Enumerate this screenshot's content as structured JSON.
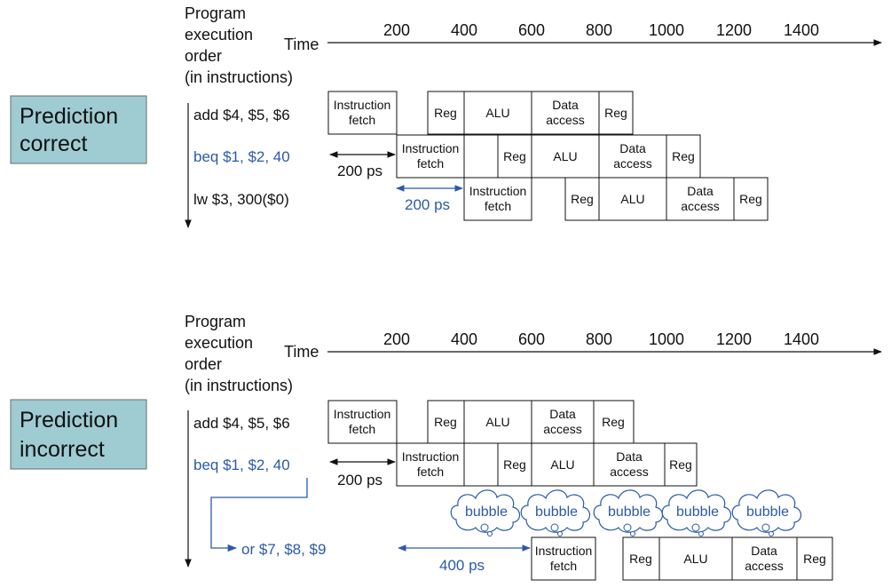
{
  "colors": {
    "blue": "#2a5aa8",
    "black": "#111111",
    "prediction_fill": "#9fccd3"
  },
  "common": {
    "order_label": [
      "Program",
      "execution",
      "order",
      "(in instructions)"
    ],
    "time_label": "Time",
    "ticks": [
      "200",
      "400",
      "600",
      "800",
      "1000",
      "1200",
      "1400"
    ],
    "stages": {
      "if": [
        "Instruction",
        "fetch"
      ],
      "reg": "Reg",
      "alu": "ALU",
      "mem": [
        "Data",
        "access"
      ]
    }
  },
  "panels": [
    {
      "prediction": [
        "Prediction",
        "correct"
      ],
      "instructions": [
        {
          "text": "add $4, $5, $6",
          "color": "black"
        },
        {
          "text": "beq $1, $2, 40",
          "color": "blue"
        },
        {
          "text": "lw  $3, 300($0)",
          "color": "black"
        }
      ],
      "dims": [
        {
          "text": "200 ps",
          "color": "black"
        },
        {
          "text": "200 ps",
          "color": "blue"
        }
      ]
    },
    {
      "prediction": [
        "Prediction",
        "incorrect"
      ],
      "instructions": [
        {
          "text": "add $4, $5, $6",
          "color": "black"
        },
        {
          "text": "beq $1, $2, 40",
          "color": "blue"
        },
        {
          "text": "or $7, $8, $9",
          "color": "blue"
        }
      ],
      "dims": [
        {
          "text": "200 ps",
          "color": "black"
        },
        {
          "text": "400 ps",
          "color": "blue"
        }
      ],
      "bubble_label": "bubble"
    }
  ]
}
